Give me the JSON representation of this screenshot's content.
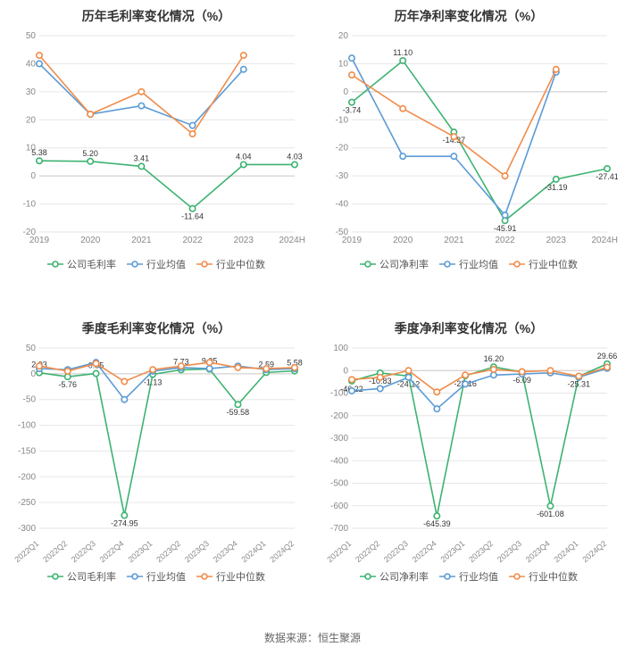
{
  "colors": {
    "company": "#3cb371",
    "industry_avg": "#5b9bd5",
    "industry_median": "#f08c4a",
    "grid": "#e6e6e6",
    "axis": "#cccccc",
    "text": "#333333",
    "tick": "#888888",
    "bg": "#ffffff"
  },
  "marker_radius": 3.2,
  "line_width": 1.6,
  "title_fontsize": 14,
  "tick_fontsize": 10,
  "datalabel_fontsize": 9,
  "legend_fontsize": 11,
  "source_text": "数据来源：恒生聚源",
  "legend_labels": {
    "company_gross": "公司毛利率",
    "company_net": "公司净利率",
    "industry_avg": "行业均值",
    "industry_median": "行业中位数"
  },
  "charts": [
    {
      "id": "annual_gross",
      "title": "历年毛利率变化情况（%）",
      "type": "line",
      "x_labels": [
        "2019",
        "2020",
        "2021",
        "2022",
        "2023",
        "2024H1"
      ],
      "x_label_rotate": false,
      "ylim": [
        -20,
        50
      ],
      "ytick_step": 10,
      "series": [
        {
          "key": "company",
          "legend": "company_gross",
          "values": [
            5.38,
            5.2,
            3.41,
            -11.64,
            4.04,
            4.03
          ],
          "labels": [
            "5.38",
            "5.20",
            "3.41",
            "-11.64",
            "4.04",
            "4.03"
          ],
          "show_labels": true
        },
        {
          "key": "industry_avg",
          "legend": "industry_avg",
          "values": [
            40.0,
            22.0,
            25.0,
            18.0,
            38.0,
            null
          ],
          "show_labels": false
        },
        {
          "key": "industry_median",
          "legend": "industry_median",
          "values": [
            43.0,
            22.0,
            30.0,
            15.0,
            43.0,
            null
          ],
          "show_labels": false
        }
      ]
    },
    {
      "id": "annual_net",
      "title": "历年净利率变化情况（%）",
      "type": "line",
      "x_labels": [
        "2019",
        "2020",
        "2021",
        "2022",
        "2023",
        "2024H1"
      ],
      "x_label_rotate": false,
      "ylim": [
        -50,
        20
      ],
      "ytick_step": 10,
      "series": [
        {
          "key": "company",
          "legend": "company_net",
          "values": [
            -3.74,
            11.1,
            -14.37,
            -45.91,
            -31.19,
            -27.41
          ],
          "labels": [
            "-3.74",
            "11.10",
            "-14.37",
            "-45.91",
            "-31.19",
            "-27.41"
          ],
          "show_labels": true
        },
        {
          "key": "industry_avg",
          "legend": "industry_avg",
          "values": [
            12.0,
            -23.0,
            -23.0,
            -44.0,
            7.0,
            null
          ],
          "show_labels": false
        },
        {
          "key": "industry_median",
          "legend": "industry_median",
          "values": [
            6.0,
            -6.0,
            -16.0,
            -30.0,
            8.0,
            null
          ],
          "show_labels": false
        }
      ]
    },
    {
      "id": "quarterly_gross",
      "title": "季度毛利率变化情况（%）",
      "type": "line",
      "x_labels": [
        "2022Q1",
        "2022Q2",
        "2022Q3",
        "2022Q4",
        "2023Q1",
        "2023Q2",
        "2023Q3",
        "2023Q4",
        "2024Q1",
        "2024Q2"
      ],
      "x_label_rotate": true,
      "ylim": [
        -300,
        50
      ],
      "ytick_step": 50,
      "series": [
        {
          "key": "company",
          "legend": "company_gross",
          "values": [
            2.03,
            -5.76,
            0.55,
            -274.95,
            -1.13,
            7.73,
            9.05,
            -59.58,
            2.59,
            5.58
          ],
          "labels": [
            "2.03",
            "-5.76",
            "0.55",
            "-274.95",
            "-1.13",
            "7.73",
            "9.05",
            "-59.58",
            "2.59",
            "5.58"
          ],
          "show_labels": true
        },
        {
          "key": "industry_avg",
          "legend": "industry_avg",
          "values": [
            10,
            8,
            22,
            -50,
            5,
            12,
            10,
            15,
            8,
            10
          ],
          "show_labels": false
        },
        {
          "key": "industry_median",
          "legend": "industry_median",
          "values": [
            15,
            5,
            20,
            -15,
            8,
            15,
            22,
            12,
            10,
            12
          ],
          "show_labels": false
        }
      ]
    },
    {
      "id": "quarterly_net",
      "title": "季度净利率变化情况（%）",
      "type": "line",
      "x_labels": [
        "2022Q1",
        "2022Q2",
        "2022Q3",
        "2022Q4",
        "2023Q1",
        "2023Q2",
        "2023Q3",
        "2023Q4",
        "2024Q1",
        "2024Q2"
      ],
      "x_label_rotate": true,
      "ylim": [
        -700,
        100
      ],
      "ytick_step": 100,
      "series": [
        {
          "key": "company",
          "legend": "company_net",
          "values": [
            -46.22,
            -10.83,
            -24.12,
            -645.39,
            -23.16,
            16.2,
            -6.09,
            -601.08,
            -25.31,
            29.66
          ],
          "labels": [
            "-46.22",
            "-10.83",
            "-24.12",
            "-645.39",
            "-23.16",
            "16.20",
            "-6.09",
            "-601.08",
            "-25.31",
            "29.66"
          ],
          "show_labels": true
        },
        {
          "key": "industry_avg",
          "legend": "industry_avg",
          "values": [
            -90,
            -80,
            -30,
            -170,
            -60,
            -20,
            -15,
            -10,
            -30,
            10
          ],
          "show_labels": false
        },
        {
          "key": "industry_median",
          "legend": "industry_median",
          "values": [
            -40,
            -30,
            0,
            -95,
            -20,
            5,
            -5,
            0,
            -25,
            15
          ],
          "show_labels": false
        }
      ]
    }
  ]
}
